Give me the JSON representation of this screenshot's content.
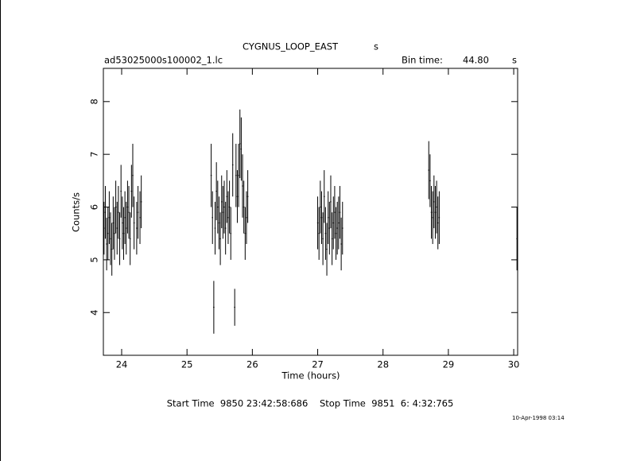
{
  "chart_data": {
    "type": "errorbar",
    "title": "CYGNUS_LOOP_EAST",
    "title_suffix": "s",
    "file_label": "ad53025000s100002_1.lc",
    "bin_time_label": "Bin time:",
    "bin_time": "44.80",
    "bin_time_unit": "s",
    "x_label": "Time (hours)",
    "y_label": "Counts/s",
    "time_range_text": "Start Time  9850 23:42:58:686    Stop Time  9851  6: 4:32:765",
    "date_stamp": "10-Apr-1998 03:14",
    "xlim": [
      23.72,
      30.06
    ],
    "ylim": [
      3.19,
      8.63
    ],
    "xticks": [
      24,
      25,
      26,
      27,
      28,
      29,
      30
    ],
    "yticks": [
      4,
      5,
      6,
      7,
      8
    ],
    "color": "#000000",
    "x": [
      23.73,
      23.75,
      23.77,
      23.79,
      23.81,
      23.83,
      23.85,
      23.87,
      23.89,
      23.91,
      23.93,
      23.95,
      23.97,
      23.99,
      24.01,
      24.03,
      24.05,
      24.07,
      24.09,
      24.11,
      24.13,
      24.15,
      24.17,
      24.19,
      24.23,
      24.25,
      24.28,
      24.3,
      25.37,
      25.39,
      25.41,
      25.43,
      25.45,
      25.47,
      25.49,
      25.51,
      25.53,
      25.55,
      25.57,
      25.59,
      25.61,
      25.63,
      25.65,
      25.67,
      25.7,
      25.73,
      25.75,
      25.77,
      25.79,
      25.81,
      25.83,
      25.85,
      25.87,
      25.89,
      25.91,
      25.93,
      27.0,
      27.02,
      27.04,
      27.06,
      27.08,
      27.1,
      27.12,
      27.14,
      27.16,
      27.18,
      27.2,
      27.22,
      27.24,
      27.26,
      27.28,
      27.3,
      27.32,
      27.34,
      27.36,
      27.38,
      28.7,
      28.72,
      28.74,
      28.76,
      28.78,
      28.8,
      28.82,
      28.84,
      28.86,
      30.05
    ],
    "values": [
      5.6,
      5.9,
      5.3,
      5.5,
      5.8,
      5.4,
      5.2,
      5.7,
      5.5,
      6.0,
      5.6,
      5.9,
      5.4,
      6.3,
      5.7,
      5.5,
      5.8,
      5.6,
      6.0,
      5.9,
      5.4,
      6.3,
      6.6,
      5.7,
      5.6,
      5.9,
      5.8,
      6.1,
      6.6,
      5.8,
      4.1,
      5.6,
      6.3,
      6.0,
      5.7,
      5.4,
      6.1,
      5.9,
      6.0,
      5.6,
      6.2,
      5.8,
      6.0,
      5.5,
      6.8,
      4.1,
      6.6,
      6.2,
      6.6,
      7.2,
      7.1,
      6.4,
      6.0,
      5.5,
      5.8,
      6.2,
      5.7,
      5.5,
      6.0,
      5.8,
      5.4,
      6.2,
      5.5,
      5.2,
      5.8,
      5.6,
      6.1,
      5.4,
      5.7,
      5.9,
      5.5,
      5.6,
      5.7,
      5.9,
      5.3,
      5.6,
      6.7,
      6.5,
      5.9,
      5.8,
      6.1,
      5.9,
      6.0,
      5.7,
      5.8,
      5.4
    ],
    "errors": [
      0.5,
      0.5,
      0.5,
      0.5,
      0.5,
      0.5,
      0.5,
      0.5,
      0.5,
      0.5,
      0.5,
      0.5,
      0.5,
      0.5,
      0.5,
      0.5,
      0.5,
      0.5,
      0.5,
      0.5,
      0.5,
      0.5,
      0.6,
      0.5,
      0.5,
      0.5,
      0.5,
      0.5,
      0.6,
      0.5,
      0.5,
      0.5,
      0.55,
      0.5,
      0.5,
      0.5,
      0.5,
      0.5,
      0.5,
      0.5,
      0.5,
      0.5,
      0.5,
      0.5,
      0.6,
      0.35,
      0.6,
      0.5,
      0.6,
      0.65,
      0.6,
      0.6,
      0.5,
      0.5,
      0.5,
      0.5,
      0.5,
      0.5,
      0.5,
      0.5,
      0.5,
      0.5,
      0.5,
      0.5,
      0.5,
      0.5,
      0.5,
      0.5,
      0.5,
      0.5,
      0.5,
      0.5,
      0.5,
      0.5,
      0.5,
      0.5,
      0.55,
      0.5,
      0.5,
      0.5,
      0.5,
      0.5,
      0.5,
      0.5,
      0.5,
      0.6
    ]
  }
}
